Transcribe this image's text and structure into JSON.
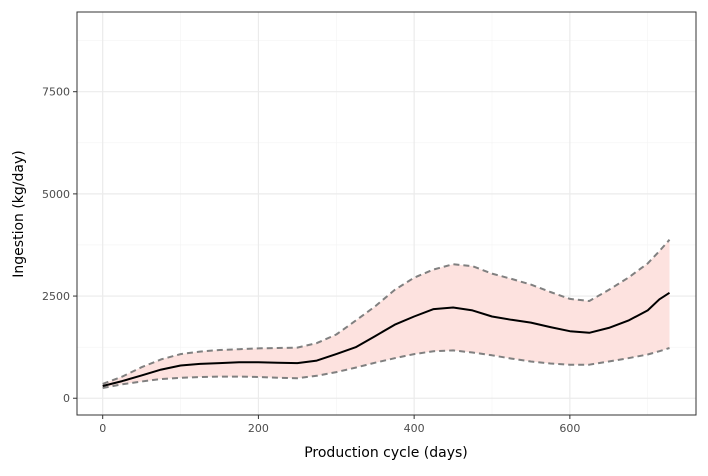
{
  "chart_data": {
    "type": "line",
    "title": "",
    "xlabel": "Production cycle (days)",
    "ylabel": "Ingestion (kg/day)",
    "xlim": [
      -33,
      762
    ],
    "ylim": [
      -410,
      9450
    ],
    "x_ticks": [
      0,
      200,
      400,
      600
    ],
    "x_tick_labels": [
      "0",
      "200",
      "400",
      "600"
    ],
    "y_ticks": [
      0,
      2500,
      5000,
      7500
    ],
    "y_tick_labels": [
      "0",
      "2500",
      "5000",
      "7500"
    ],
    "grid": true,
    "legend": "none",
    "colors": {
      "ribbon_fill": "#fde2df",
      "median_line": "#000000",
      "bound_lines": "#808080",
      "panel_border": "#333333",
      "grid_major": "#ebebeb",
      "grid_minor": "#f3f3f3"
    },
    "series": [
      {
        "role": "median",
        "style": "solid",
        "x": [
          0,
          25,
          50,
          75,
          100,
          125,
          150,
          175,
          200,
          225,
          250,
          275,
          300,
          325,
          350,
          375,
          400,
          425,
          450,
          475,
          500,
          525,
          550,
          575,
          600,
          625,
          650,
          675,
          700,
          715,
          728
        ],
        "values": [
          300,
          420,
          560,
          700,
          800,
          840,
          860,
          880,
          880,
          870,
          860,
          920,
          1080,
          1250,
          1520,
          1800,
          2000,
          2180,
          2220,
          2150,
          2000,
          1920,
          1850,
          1740,
          1640,
          1600,
          1720,
          1900,
          2150,
          2420,
          2580
        ]
      },
      {
        "role": "upper bound",
        "style": "dashed",
        "x": [
          0,
          25,
          50,
          75,
          100,
          125,
          150,
          175,
          200,
          225,
          250,
          275,
          300,
          325,
          350,
          375,
          400,
          425,
          450,
          475,
          500,
          525,
          550,
          575,
          600,
          625,
          650,
          675,
          700,
          715,
          728
        ],
        "values": [
          350,
          530,
          760,
          950,
          1080,
          1140,
          1180,
          1200,
          1220,
          1230,
          1240,
          1350,
          1560,
          1900,
          2250,
          2650,
          2950,
          3150,
          3280,
          3230,
          3050,
          2920,
          2780,
          2600,
          2430,
          2380,
          2650,
          2950,
          3300,
          3600,
          3880
        ]
      },
      {
        "role": "lower bound",
        "style": "dashed",
        "x": [
          0,
          25,
          50,
          75,
          100,
          125,
          150,
          175,
          200,
          225,
          250,
          275,
          300,
          325,
          350,
          375,
          400,
          425,
          450,
          475,
          500,
          525,
          550,
          575,
          600,
          625,
          650,
          675,
          700,
          715,
          728
        ],
        "values": [
          250,
          340,
          410,
          470,
          500,
          520,
          530,
          530,
          520,
          500,
          490,
          550,
          640,
          750,
          870,
          980,
          1080,
          1150,
          1170,
          1120,
          1050,
          970,
          900,
          850,
          820,
          820,
          900,
          980,
          1070,
          1150,
          1230
        ]
      }
    ]
  }
}
